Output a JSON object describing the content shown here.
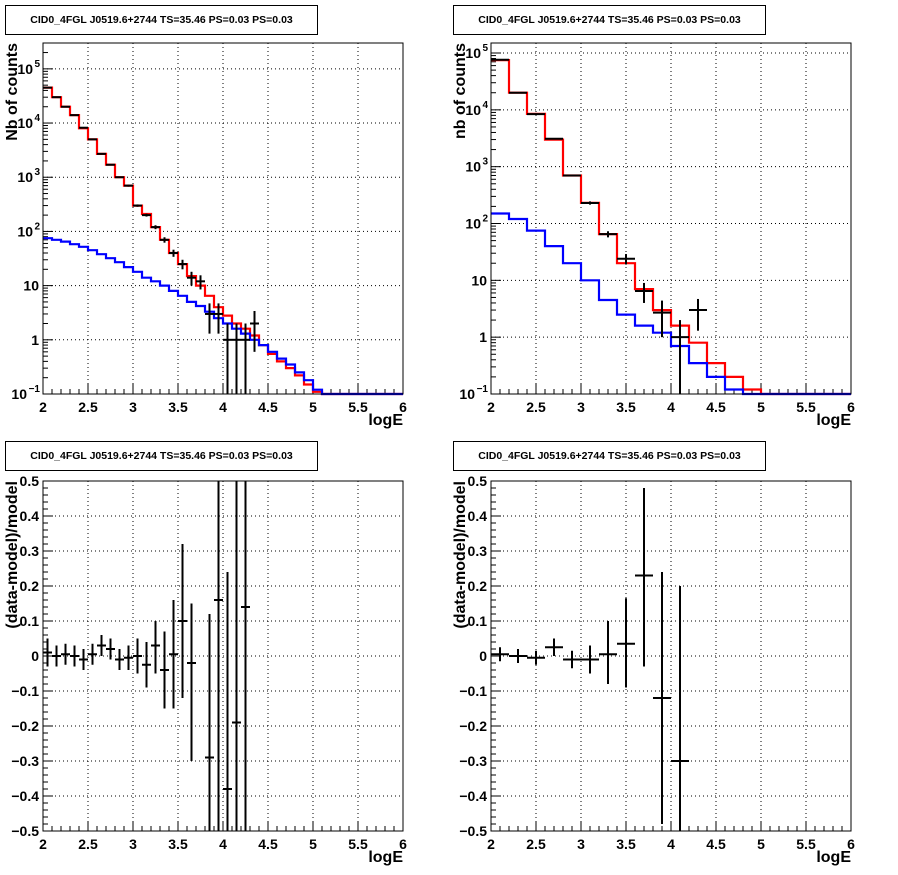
{
  "chart_data": [
    {
      "type": "line",
      "title": "CID0_4FGL J0519.6+2744 TS=35.46 PS=0.03 PS=0.03",
      "xlabel": "logE",
      "ylabel": "Nb of counts",
      "xlim": [
        2,
        6
      ],
      "ylim": [
        0.1,
        300000
      ],
      "yscale": "log",
      "grid": true,
      "x_ticks": [
        "2",
        "2.5",
        "3",
        "3.5",
        "4",
        "4.5",
        "5",
        "5.5",
        "6"
      ],
      "y_ticks": [
        {
          "v": 0.1,
          "b": "10",
          "e": "−1"
        },
        {
          "v": 1,
          "b": "1",
          "e": ""
        },
        {
          "v": 10,
          "b": "10",
          "e": ""
        },
        {
          "v": 100,
          "b": "10",
          "e": "2"
        },
        {
          "v": 1000,
          "b": "10",
          "e": "3"
        },
        {
          "v": 10000,
          "b": "10",
          "e": "4"
        },
        {
          "v": 100000,
          "b": "10",
          "e": "5"
        }
      ],
      "bin_edges": [
        2,
        2.1,
        2.2,
        2.3,
        2.4,
        2.5,
        2.6,
        2.7,
        2.8,
        2.9,
        3,
        3.1,
        3.2,
        3.3,
        3.4,
        3.5,
        3.6,
        3.7,
        3.8,
        3.9,
        4,
        4.1,
        4.2,
        4.3,
        4.4,
        4.5,
        4.6,
        4.7,
        4.8,
        4.9,
        5,
        5.1,
        5.2,
        5.3,
        5.4,
        5.5,
        5.6,
        5.7,
        5.8,
        5.9,
        6
      ],
      "series": [
        {
          "color": "#ff0000",
          "values": [
            45000,
            30000,
            20000,
            14000,
            8000,
            5000,
            2700,
            1700,
            1000,
            700,
            300,
            210,
            120,
            70,
            40,
            25,
            15,
            10,
            6.5,
            4,
            2.8,
            2,
            1.6,
            1.2,
            0.8,
            0.55,
            0.4,
            0.3,
            0.22,
            0.15,
            0.11,
            0.1,
            0.1,
            0.1,
            0.1,
            0.1,
            0.1,
            0.1,
            0.1,
            0.1
          ]
        },
        {
          "color": "#0000ff",
          "values": [
            75,
            70,
            65,
            58,
            52,
            45,
            38,
            32,
            27,
            22,
            18,
            14,
            12,
            10,
            8,
            6.5,
            5,
            4.2,
            3.3,
            2.5,
            2,
            1.6,
            1.3,
            1,
            0.8,
            0.6,
            0.45,
            0.35,
            0.25,
            0.18,
            0.12,
            0.1,
            0.1,
            0.1,
            0.1,
            0.1,
            0.1,
            0.1,
            0.1,
            0.1
          ]
        }
      ],
      "data_points": [
        {
          "x": 2.05,
          "y": 45000,
          "lo": 44700,
          "hi": 45300
        },
        {
          "x": 2.15,
          "y": 30000,
          "lo": 29700,
          "hi": 30300
        },
        {
          "x": 2.25,
          "y": 20000,
          "lo": 19800,
          "hi": 20200
        },
        {
          "x": 2.35,
          "y": 14000,
          "lo": 13800,
          "hi": 14200
        },
        {
          "x": 2.45,
          "y": 8200,
          "lo": 8100,
          "hi": 8300
        },
        {
          "x": 2.55,
          "y": 5000,
          "lo": 4900,
          "hi": 5100
        },
        {
          "x": 2.65,
          "y": 2700,
          "lo": 2650,
          "hi": 2750
        },
        {
          "x": 2.75,
          "y": 1700,
          "lo": 1660,
          "hi": 1740
        },
        {
          "x": 2.85,
          "y": 1000,
          "lo": 970,
          "hi": 1030
        },
        {
          "x": 2.95,
          "y": 700,
          "lo": 670,
          "hi": 730
        },
        {
          "x": 3.05,
          "y": 300,
          "lo": 285,
          "hi": 315
        },
        {
          "x": 3.15,
          "y": 200,
          "lo": 188,
          "hi": 212
        },
        {
          "x": 3.25,
          "y": 120,
          "lo": 110,
          "hi": 130
        },
        {
          "x": 3.35,
          "y": 70,
          "lo": 62,
          "hi": 78
        },
        {
          "x": 3.45,
          "y": 40,
          "lo": 34,
          "hi": 46
        },
        {
          "x": 3.55,
          "y": 25,
          "lo": 20,
          "hi": 30
        },
        {
          "x": 3.65,
          "y": 14,
          "lo": 10,
          "hi": 18
        },
        {
          "x": 3.75,
          "y": 12,
          "lo": 8.5,
          "hi": 15.5
        },
        {
          "x": 3.85,
          "y": 3,
          "lo": 1.3,
          "hi": 4.7
        },
        {
          "x": 3.95,
          "y": 3,
          "lo": 1.3,
          "hi": 4.7
        },
        {
          "x": 4.05,
          "y": 1,
          "lo": 0.1,
          "hi": 2
        },
        {
          "x": 4.15,
          "y": 1,
          "lo": 0.1,
          "hi": 2
        },
        {
          "x": 4.25,
          "y": 1,
          "lo": 0.1,
          "hi": 2
        },
        {
          "x": 4.35,
          "y": 2,
          "lo": 0.6,
          "hi": 3.4
        }
      ]
    },
    {
      "type": "line",
      "title": "CID0_4FGL J0519.6+2744 TS=35.46 PS=0.03 PS=0.03",
      "xlabel": "logE",
      "ylabel": "nb of counts",
      "xlim": [
        2,
        6
      ],
      "ylim": [
        0.1,
        150000
      ],
      "yscale": "log",
      "grid": true,
      "x_ticks": [
        "2",
        "2.5",
        "3",
        "3.5",
        "4",
        "4.5",
        "5",
        "5.5",
        "6"
      ],
      "y_ticks": [
        {
          "v": 0.1,
          "b": "10",
          "e": "−1"
        },
        {
          "v": 1,
          "b": "1",
          "e": ""
        },
        {
          "v": 10,
          "b": "10",
          "e": ""
        },
        {
          "v": 100,
          "b": "10",
          "e": "2"
        },
        {
          "v": 1000,
          "b": "10",
          "e": "3"
        },
        {
          "v": 10000,
          "b": "10",
          "e": "4"
        },
        {
          "v": 100000,
          "b": "10",
          "e": "5"
        }
      ],
      "bin_edges": [
        2,
        2.2,
        2.4,
        2.6,
        2.8,
        3,
        3.2,
        3.4,
        3.6,
        3.8,
        4,
        4.2,
        4.4,
        4.6,
        4.8,
        5,
        5.2,
        5.4,
        5.6,
        5.8,
        6
      ],
      "series": [
        {
          "color": "#ff0000",
          "values": [
            75000,
            20000,
            8500,
            3000,
            700,
            230,
            65,
            20,
            7,
            3,
            1.6,
            0.8,
            0.35,
            0.2,
            0.12,
            0.1,
            0.1,
            0.1,
            0.1,
            0.1
          ]
        },
        {
          "color": "#0000ff",
          "values": [
            150,
            120,
            75,
            40,
            20,
            10,
            4.5,
            2.5,
            1.6,
            1.2,
            0.7,
            0.35,
            0.2,
            0.12,
            0.1,
            0.1,
            0.1,
            0.1,
            0.1,
            0.1
          ]
        }
      ],
      "data_points": [
        {
          "x": 2.1,
          "y": 76000,
          "lo": 75700,
          "hi": 76300
        },
        {
          "x": 2.3,
          "y": 20000,
          "lo": 19850,
          "hi": 20150
        },
        {
          "x": 2.5,
          "y": 8400,
          "lo": 8300,
          "hi": 8500
        },
        {
          "x": 2.7,
          "y": 3100,
          "lo": 3050,
          "hi": 3150
        },
        {
          "x": 2.9,
          "y": 700,
          "lo": 680,
          "hi": 720
        },
        {
          "x": 3.1,
          "y": 230,
          "lo": 215,
          "hi": 245
        },
        {
          "x": 3.3,
          "y": 65,
          "lo": 57,
          "hi": 73
        },
        {
          "x": 3.5,
          "y": 24,
          "lo": 19,
          "hi": 29
        },
        {
          "x": 3.7,
          "y": 6.5,
          "lo": 4,
          "hi": 9
        },
        {
          "x": 3.9,
          "y": 2.7,
          "lo": 1,
          "hi": 4.4
        },
        {
          "x": 4.1,
          "y": 1,
          "lo": 0.1,
          "hi": 2
        },
        {
          "x": 4.3,
          "y": 3,
          "lo": 1.3,
          "hi": 4.7
        }
      ]
    },
    {
      "type": "scatter",
      "title": "CID0_4FGL J0519.6+2744 TS=35.46 PS=0.03 PS=0.03",
      "xlabel": "logE",
      "ylabel": "(data-model)/model",
      "xlim": [
        2,
        6
      ],
      "ylim": [
        -0.5,
        0.5
      ],
      "grid": true,
      "x_ticks": [
        "2",
        "2.5",
        "3",
        "3.5",
        "4",
        "4.5",
        "5",
        "5.5",
        "6"
      ],
      "y_ticks": [
        "−0.5",
        "−0.4",
        "−0.3",
        "−0.2",
        "−0.1",
        "0",
        "0.1",
        "0.2",
        "0.3",
        "0.4",
        "0.5"
      ],
      "xerr": 0.05,
      "points": [
        {
          "x": 2.05,
          "y": 0.01,
          "lo": -0.03,
          "hi": 0.05
        },
        {
          "x": 2.15,
          "y": 0.0,
          "lo": -0.03,
          "hi": 0.03
        },
        {
          "x": 2.25,
          "y": 0.005,
          "lo": -0.025,
          "hi": 0.035
        },
        {
          "x": 2.35,
          "y": 0.0,
          "lo": -0.03,
          "hi": 0.03
        },
        {
          "x": 2.45,
          "y": -0.01,
          "lo": -0.04,
          "hi": 0.02
        },
        {
          "x": 2.55,
          "y": 0.005,
          "lo": -0.025,
          "hi": 0.035
        },
        {
          "x": 2.65,
          "y": 0.03,
          "lo": 0.0,
          "hi": 0.06
        },
        {
          "x": 2.75,
          "y": 0.02,
          "lo": -0.01,
          "hi": 0.05
        },
        {
          "x": 2.85,
          "y": -0.01,
          "lo": -0.04,
          "hi": 0.02
        },
        {
          "x": 2.95,
          "y": -0.005,
          "lo": -0.04,
          "hi": 0.03
        },
        {
          "x": 3.05,
          "y": 0.0,
          "lo": -0.05,
          "hi": 0.05
        },
        {
          "x": 3.15,
          "y": -0.025,
          "lo": -0.09,
          "hi": 0.04
        },
        {
          "x": 3.25,
          "y": 0.03,
          "lo": -0.05,
          "hi": 0.1
        },
        {
          "x": 3.35,
          "y": -0.04,
          "lo": -0.15,
          "hi": 0.07
        },
        {
          "x": 3.45,
          "y": 0.005,
          "lo": -0.15,
          "hi": 0.16
        },
        {
          "x": 3.55,
          "y": 0.1,
          "lo": -0.12,
          "hi": 0.32
        },
        {
          "x": 3.65,
          "y": -0.02,
          "lo": -0.3,
          "hi": 0.15
        },
        {
          "x": 3.85,
          "y": -0.29,
          "lo": -0.5,
          "hi": 0.12
        },
        {
          "x": 3.95,
          "y": 0.16,
          "lo": -0.5,
          "hi": 0.5
        },
        {
          "x": 4.05,
          "y": -0.38,
          "lo": -0.5,
          "hi": 0.24
        },
        {
          "x": 4.15,
          "y": -0.19,
          "lo": -0.5,
          "hi": 0.5
        },
        {
          "x": 4.25,
          "y": 0.14,
          "lo": -0.5,
          "hi": 0.5
        }
      ]
    },
    {
      "type": "scatter",
      "title": "CID0_4FGL J0519.6+2744 TS=35.46 PS=0.03 PS=0.03",
      "xlabel": "logE",
      "ylabel": "(data-model)/model",
      "xlim": [
        2,
        6
      ],
      "ylim": [
        -0.5,
        0.5
      ],
      "grid": true,
      "x_ticks": [
        "2",
        "2.5",
        "3",
        "3.5",
        "4",
        "4.5",
        "5",
        "5.5",
        "6"
      ],
      "y_ticks": [
        "−0.5",
        "−0.4",
        "−0.3",
        "−0.2",
        "−0.1",
        "0",
        "0.1",
        "0.2",
        "0.3",
        "0.4",
        "0.5"
      ],
      "xerr": 0.1,
      "points": [
        {
          "x": 2.1,
          "y": 0.005,
          "lo": -0.015,
          "hi": 0.025
        },
        {
          "x": 2.3,
          "y": 0.0,
          "lo": -0.02,
          "hi": 0.02
        },
        {
          "x": 2.5,
          "y": -0.005,
          "lo": -0.025,
          "hi": 0.015
        },
        {
          "x": 2.7,
          "y": 0.025,
          "lo": 0.0,
          "hi": 0.05
        },
        {
          "x": 2.9,
          "y": -0.01,
          "lo": -0.035,
          "hi": 0.015
        },
        {
          "x": 3.1,
          "y": -0.01,
          "lo": -0.05,
          "hi": 0.03
        },
        {
          "x": 3.3,
          "y": 0.005,
          "lo": -0.08,
          "hi": 0.1
        },
        {
          "x": 3.5,
          "y": 0.035,
          "lo": -0.09,
          "hi": 0.165
        },
        {
          "x": 3.7,
          "y": 0.23,
          "lo": -0.03,
          "hi": 0.48
        },
        {
          "x": 3.9,
          "y": -0.12,
          "lo": -0.48,
          "hi": 0.24
        },
        {
          "x": 4.1,
          "y": -0.3,
          "lo": -0.5,
          "hi": 0.2
        }
      ]
    }
  ]
}
